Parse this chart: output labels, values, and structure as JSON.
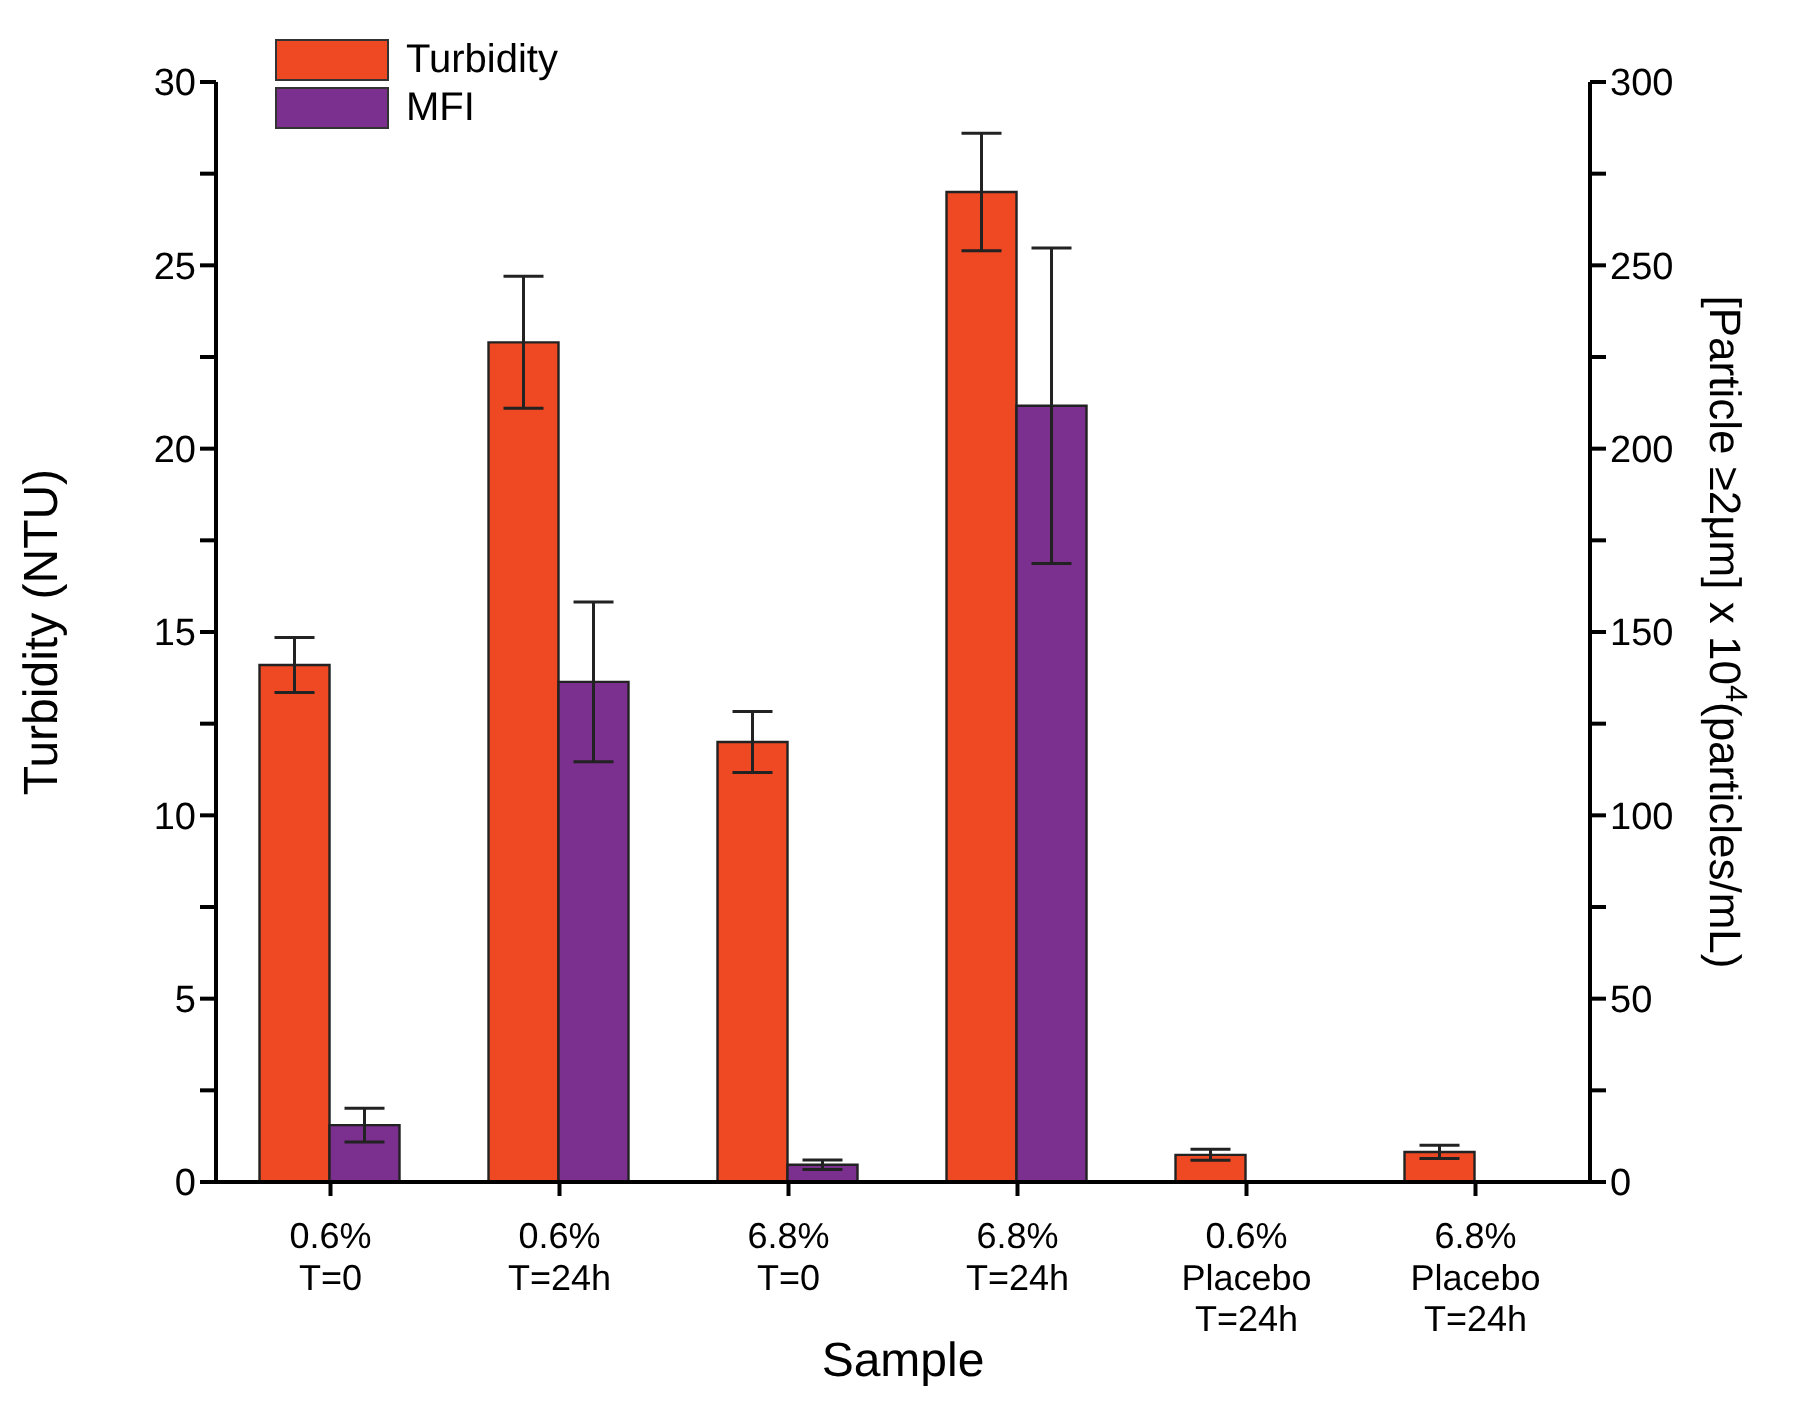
{
  "chart_data": {
    "type": "bar",
    "xlabel": "Sample",
    "ylabel": "Turbidity (NTU)",
    "y2label": "[Particle ≥2μm] x 10$^{4}$(particles/mL)",
    "categories": [
      "0.6% T=0",
      "0.6% T=24h",
      "6.8% T=0",
      "6.8% T=24h",
      "0.6% Placebo T=24h",
      "6.8% Placebo T=24h"
    ],
    "series": [
      {
        "name": "Turbidity",
        "color": "#ef4923",
        "values": [
          14.1,
          22.9,
          12.0,
          27.0,
          0.74,
          0.82
        ],
        "errors": [
          0.75,
          1.8,
          0.83,
          1.6,
          0.15,
          0.18
        ]
      },
      {
        "name": "MFI",
        "color": "#7b2f8e",
        "axis": "y2",
        "values": [
          15.5,
          136.4,
          4.7,
          211.7,
          null,
          null
        ],
        "errors": [
          4.6,
          21.8,
          1.3,
          43,
          null,
          null
        ]
      }
    ],
    "ylim": [
      0,
      30
    ],
    "yticks": [
      0,
      {
        "value": 2.5,
        "label": null
      },
      5,
      {
        "value": 7.5,
        "label": null
      },
      10,
      {
        "value": 12.5,
        "label": null
      },
      15,
      {
        "value": 17.5,
        "label": null
      },
      20,
      {
        "value": 22.5,
        "label": null
      },
      25,
      {
        "value": 27.5,
        "label": null
      },
      30
    ],
    "y2lim": [
      0,
      300
    ],
    "y2ticks": [
      0,
      {
        "value": 25,
        "label": null
      },
      50,
      {
        "value": 75,
        "label": null
      },
      100,
      {
        "value": 125,
        "label": null
      },
      150,
      {
        "value": 175,
        "label": null
      },
      200,
      {
        "value": 225,
        "label": null
      },
      250,
      {
        "value": 275,
        "label": null
      },
      300
    ],
    "legend": "top left",
    "grid": false
  }
}
